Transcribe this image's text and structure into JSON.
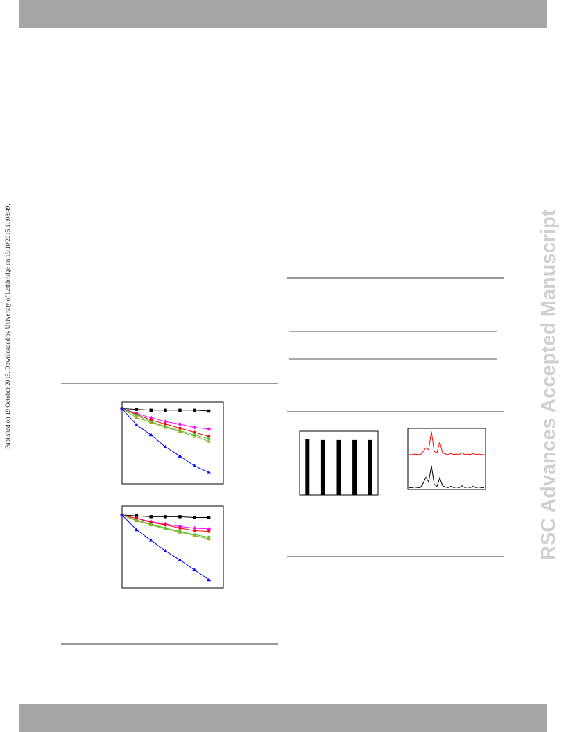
{
  "sidebar_text": "Published on 19 October 2015. Downloaded by University of Lethbridge on 19/10/2015 11:08:49.",
  "watermark": "RSC Advances Accepted Manuscript",
  "chart_data": [
    {
      "type": "line",
      "xlim": [
        0,
        7
      ],
      "ylim": [
        0,
        1
      ],
      "series": [
        {
          "color": "#000000",
          "marker": "square",
          "values": [
            0.92,
            0.91,
            0.9,
            0.9,
            0.9,
            0.9,
            0.89
          ]
        },
        {
          "color": "#ff00ff",
          "marker": "diamond",
          "values": [
            0.92,
            0.86,
            0.81,
            0.76,
            0.73,
            0.69,
            0.67
          ]
        },
        {
          "color": "#ff0000",
          "marker": "circle",
          "values": [
            0.92,
            0.85,
            0.78,
            0.73,
            0.68,
            0.63,
            0.58
          ]
        },
        {
          "color": "#33cc33",
          "marker": "circle",
          "values": [
            0.92,
            0.84,
            0.76,
            0.7,
            0.65,
            0.6,
            0.55
          ]
        },
        {
          "color": "#99aa22",
          "marker": "triangle",
          "values": [
            0.92,
            0.81,
            0.75,
            0.69,
            0.64,
            0.58,
            0.52
          ]
        },
        {
          "color": "#0000ff",
          "marker": "triangle",
          "values": [
            0.92,
            0.72,
            0.6,
            0.45,
            0.34,
            0.22,
            0.14
          ]
        }
      ]
    },
    {
      "type": "line",
      "xlim": [
        0,
        7
      ],
      "ylim": [
        0,
        1
      ],
      "series": [
        {
          "color": "#000000",
          "marker": "square",
          "values": [
            0.89,
            0.88,
            0.87,
            0.87,
            0.87,
            0.86,
            0.86
          ]
        },
        {
          "color": "#ff00ff",
          "marker": "diamond",
          "values": [
            0.89,
            0.85,
            0.81,
            0.78,
            0.75,
            0.73,
            0.72
          ]
        },
        {
          "color": "#ff0000",
          "marker": "circle",
          "values": [
            0.89,
            0.85,
            0.8,
            0.77,
            0.73,
            0.7,
            0.69
          ]
        },
        {
          "color": "#33cc33",
          "marker": "circle",
          "values": [
            0.89,
            0.83,
            0.78,
            0.73,
            0.69,
            0.65,
            0.62
          ]
        },
        {
          "color": "#99aa22",
          "marker": "triangle",
          "values": [
            0.89,
            0.82,
            0.77,
            0.72,
            0.68,
            0.64,
            0.6
          ]
        },
        {
          "color": "#0000ff",
          "marker": "triangle",
          "values": [
            0.89,
            0.71,
            0.58,
            0.45,
            0.34,
            0.22,
            0.1
          ]
        }
      ]
    },
    {
      "type": "bar",
      "ylim": [
        0,
        1
      ],
      "color": "#000000",
      "values": [
        0.87,
        0.86,
        0.86,
        0.86,
        0.86
      ]
    },
    {
      "type": "spectrum",
      "xlim": [
        -0.5,
        27.5
      ],
      "ylim": [
        0,
        1
      ],
      "series": [
        {
          "color": "#ff0000",
          "values": [
            0.57,
            0.57,
            0.58,
            0.57,
            0.57,
            0.62,
            0.68,
            0.65,
            0.95,
            0.62,
            0.6,
            0.78,
            0.6,
            0.58,
            0.57,
            0.59,
            0.57,
            0.58,
            0.57,
            0.6,
            0.57,
            0.58,
            0.57,
            0.59,
            0.57,
            0.58,
            0.57,
            0.57
          ]
        },
        {
          "color": "#000000",
          "values": [
            0.03,
            0.03,
            0.04,
            0.03,
            0.03,
            0.1,
            0.2,
            0.12,
            0.39,
            0.08,
            0.05,
            0.19,
            0.06,
            0.04,
            0.03,
            0.05,
            0.03,
            0.04,
            0.03,
            0.06,
            0.03,
            0.04,
            0.03,
            0.05,
            0.03,
            0.04,
            0.03,
            0.03
          ]
        }
      ]
    }
  ]
}
